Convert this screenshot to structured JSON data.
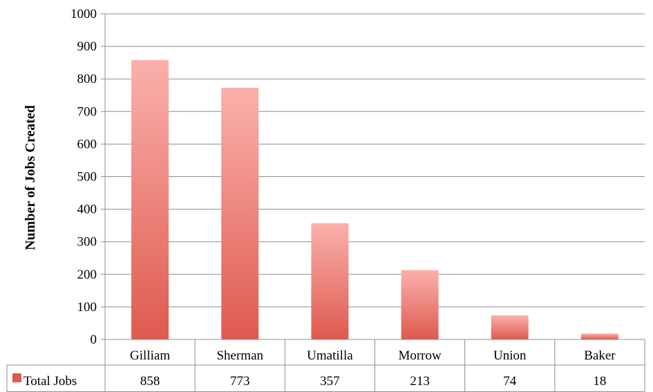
{
  "chart_data": {
    "type": "bar",
    "title": "",
    "xlabel": "",
    "ylabel": "Number of Jobs Created",
    "categories": [
      "Gilliam",
      "Sherman",
      "Umatilla",
      "Morrow",
      "Union",
      "Baker"
    ],
    "series": [
      {
        "name": "Total Jobs",
        "values": [
          858,
          773,
          357,
          213,
          74,
          18
        ],
        "color": "#e05a50"
      }
    ],
    "ylim": [
      0,
      1000
    ],
    "yticks": [
      "0",
      "100",
      "200",
      "300",
      "400",
      "500",
      "600",
      "700",
      "800",
      "900",
      "1000"
    ],
    "grid": true,
    "legend": "data-table-left",
    "data_table": true
  }
}
